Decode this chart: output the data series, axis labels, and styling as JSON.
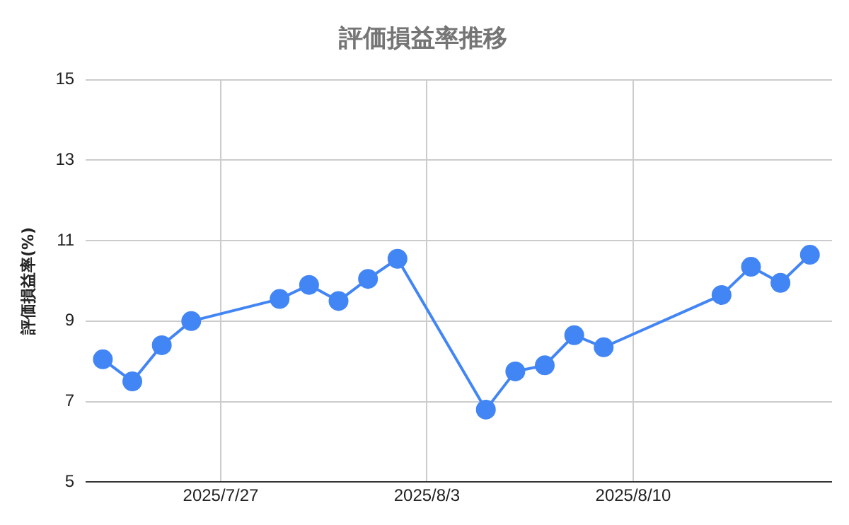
{
  "chart_data": {
    "type": "line",
    "title": "評価損益率推移",
    "ylabel": "評価損益率(%)",
    "x": [
      "2025-07-23",
      "2025-07-24",
      "2025-07-25",
      "2025-07-26",
      "2025-07-29",
      "2025-07-30",
      "2025-07-31",
      "2025-08-01",
      "2025-08-02",
      "2025-08-05",
      "2025-08-06",
      "2025-08-07",
      "2025-08-08",
      "2025-08-09",
      "2025-08-13",
      "2025-08-14",
      "2025-08-15",
      "2025-08-16"
    ],
    "series": [
      {
        "color": "#4285f4",
        "values": [
          8.05,
          7.5,
          8.4,
          9.0,
          9.55,
          9.9,
          9.5,
          10.05,
          10.55,
          6.8,
          7.75,
          7.9,
          8.65,
          8.35,
          9.65,
          10.35,
          9.95,
          10.65
        ]
      }
    ],
    "xlim": [
      "2025-07-22T10:00",
      "2025-08-16T18:00"
    ],
    "xticks": [
      {
        "value": "2025-07-27",
        "label": "2025/7/27"
      },
      {
        "value": "2025-08-03",
        "label": "2025/8/3"
      },
      {
        "value": "2025-08-10",
        "label": "2025/8/10"
      }
    ],
    "ylim": [
      5,
      15
    ],
    "yticks": [
      5,
      7,
      9,
      11,
      13,
      15
    ],
    "grid": true,
    "marker": "circle",
    "line_style": "solid"
  }
}
